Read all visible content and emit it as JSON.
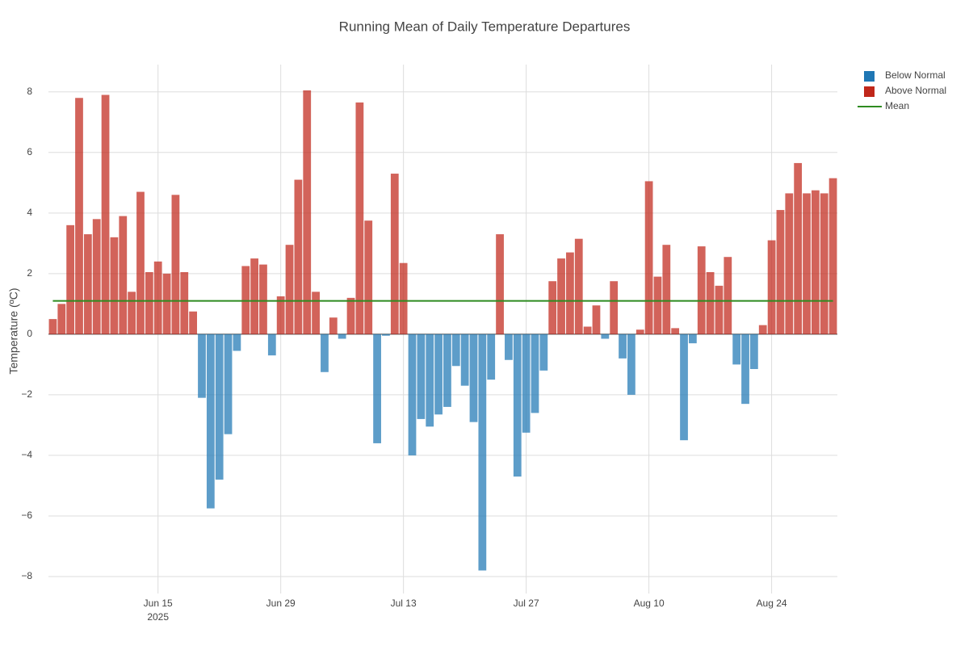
{
  "chart_data": {
    "type": "bar",
    "title": "Running Mean of Daily Temperature Departures",
    "y_label": "Temperature (ºC)",
    "x": [
      "2025-06-03",
      "2025-06-04",
      "2025-06-05",
      "2025-06-06",
      "2025-06-07",
      "2025-06-08",
      "2025-06-09",
      "2025-06-10",
      "2025-06-11",
      "2025-06-12",
      "2025-06-13",
      "2025-06-14",
      "2025-06-15",
      "2025-06-16",
      "2025-06-17",
      "2025-06-18",
      "2025-06-19",
      "2025-06-20",
      "2025-06-21",
      "2025-06-22",
      "2025-06-23",
      "2025-06-24",
      "2025-06-25",
      "2025-06-26",
      "2025-06-27",
      "2025-06-28",
      "2025-06-29",
      "2025-06-30",
      "2025-07-01",
      "2025-07-02",
      "2025-07-03",
      "2025-07-04",
      "2025-07-05",
      "2025-07-06",
      "2025-07-07",
      "2025-07-08",
      "2025-07-09",
      "2025-07-10",
      "2025-07-11",
      "2025-07-12",
      "2025-07-13",
      "2025-07-14",
      "2025-07-15",
      "2025-07-16",
      "2025-07-17",
      "2025-07-18",
      "2025-07-19",
      "2025-07-20",
      "2025-07-21",
      "2025-07-22",
      "2025-07-23",
      "2025-07-24",
      "2025-07-25",
      "2025-07-26",
      "2025-07-27",
      "2025-07-28",
      "2025-07-29",
      "2025-07-30",
      "2025-07-31",
      "2025-08-01",
      "2025-08-02",
      "2025-08-03",
      "2025-08-04",
      "2025-08-05",
      "2025-08-06",
      "2025-08-07",
      "2025-08-08",
      "2025-08-09",
      "2025-08-10",
      "2025-08-11",
      "2025-08-12",
      "2025-08-13",
      "2025-08-14",
      "2025-08-15",
      "2025-08-16",
      "2025-08-17",
      "2025-08-18",
      "2025-08-19",
      "2025-08-20",
      "2025-08-21",
      "2025-08-22",
      "2025-08-23",
      "2025-08-24",
      "2025-08-25",
      "2025-08-26",
      "2025-08-27",
      "2025-08-28",
      "2025-08-29",
      "2025-08-30",
      "2025-08-31"
    ],
    "series": [
      {
        "name": "Below Normal",
        "color": "#1f77b4",
        "values": [
          null,
          null,
          null,
          null,
          null,
          null,
          null,
          null,
          null,
          null,
          null,
          null,
          null,
          null,
          null,
          null,
          null,
          -2.1,
          -5.75,
          -4.8,
          -3.3,
          -0.55,
          null,
          null,
          null,
          -0.7,
          null,
          null,
          null,
          null,
          null,
          -1.25,
          null,
          -0.15,
          null,
          null,
          null,
          -3.6,
          -0.05,
          null,
          null,
          -4.0,
          -2.8,
          -3.05,
          -2.65,
          -2.4,
          -1.05,
          -1.7,
          -2.9,
          -7.8,
          -1.5,
          null,
          -0.85,
          -4.7,
          -3.25,
          -2.6,
          -1.2,
          null,
          null,
          null,
          null,
          null,
          null,
          -0.15,
          null,
          -0.8,
          -2.0,
          null,
          null,
          null,
          null,
          null,
          -3.5,
          -0.3,
          null,
          null,
          null,
          null,
          -1.0,
          -2.3,
          -1.15,
          null,
          null,
          null,
          null,
          null,
          null,
          null,
          null,
          null
        ]
      },
      {
        "name": "Above Normal",
        "color": "#c0271a",
        "values": [
          0.5,
          1.0,
          3.6,
          7.8,
          3.3,
          3.8,
          7.9,
          3.2,
          3.9,
          1.4,
          4.7,
          2.05,
          2.4,
          2.0,
          4.6,
          2.05,
          0.75,
          null,
          null,
          null,
          null,
          null,
          2.25,
          2.5,
          2.3,
          null,
          1.25,
          2.95,
          5.1,
          8.05,
          1.4,
          null,
          0.55,
          null,
          1.2,
          7.65,
          3.75,
          null,
          null,
          5.3,
          2.35,
          null,
          null,
          null,
          null,
          null,
          null,
          null,
          null,
          null,
          null,
          3.3,
          null,
          null,
          null,
          null,
          null,
          1.75,
          2.5,
          2.7,
          3.15,
          0.25,
          0.95,
          null,
          1.75,
          null,
          null,
          0.15,
          5.05,
          1.9,
          2.95,
          0.2,
          null,
          null,
          2.9,
          2.05,
          1.6,
          2.55,
          null,
          null,
          null,
          0.3,
          3.1,
          4.1,
          4.65,
          5.65,
          4.65,
          4.75,
          4.65,
          5.15
        ]
      }
    ],
    "mean_line": {
      "name": "Mean",
      "color": "#2e8b20",
      "value": 1.1
    },
    "xlim": [
      "2025-06-02T12:00:00Z",
      "2025-08-31T12:00:00Z"
    ],
    "xticks": [
      {
        "value": "2025-06-15",
        "label": "Jun 15"
      },
      {
        "value": "2025-06-29",
        "label": "Jun 29"
      },
      {
        "value": "2025-07-13",
        "label": "Jul 13"
      },
      {
        "value": "2025-07-27",
        "label": "Jul 27"
      },
      {
        "value": "2025-08-10",
        "label": "Aug 10"
      },
      {
        "value": "2025-08-24",
        "label": "Aug 24"
      }
    ],
    "x_year_label": "2025",
    "ylim": [
      -8.56,
      8.9
    ],
    "yticks": [
      {
        "value": -8,
        "label": "−8"
      },
      {
        "value": -6,
        "label": "−6"
      },
      {
        "value": -4,
        "label": "−4"
      },
      {
        "value": -2,
        "label": "−2"
      },
      0,
      2,
      4,
      6,
      8
    ],
    "grid": true,
    "legend": "top-right"
  }
}
